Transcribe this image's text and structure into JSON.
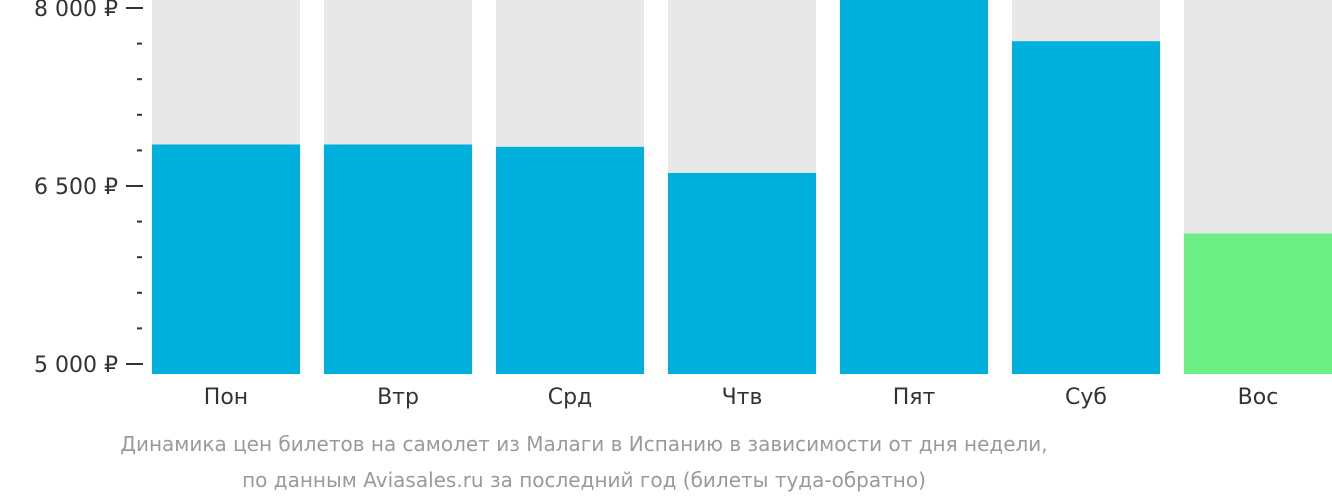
{
  "chart_data": {
    "type": "bar",
    "categories": [
      "Пон",
      "Втр",
      "Срд",
      "Чтв",
      "Пят",
      "Суб",
      "Вос"
    ],
    "values": [
      6850,
      6850,
      6830,
      6610,
      8080,
      7720,
      6100
    ],
    "ylim": [
      5000,
      8000
    ],
    "ytick_labels": [
      {
        "value": 8000,
        "label": "8 000 ₽"
      },
      {
        "value": 6500,
        "label": "6 500 ₽"
      },
      {
        "value": 5000,
        "label": "5 000 ₽"
      }
    ],
    "minor_tick_step": 300,
    "bar_color": "#00b0dc",
    "min_bar_color": "#6cf085",
    "background_bar_color": "#e8e8e8",
    "axis_color": "#333333",
    "grid": false,
    "legend": "none"
  },
  "caption": {
    "line1": "Динамика цен билетов на самолет из Малаги в Испанию в зависимости от дня недели,",
    "line2": "по данным Aviasales.ru за последний год (билеты туда-обратно)"
  }
}
